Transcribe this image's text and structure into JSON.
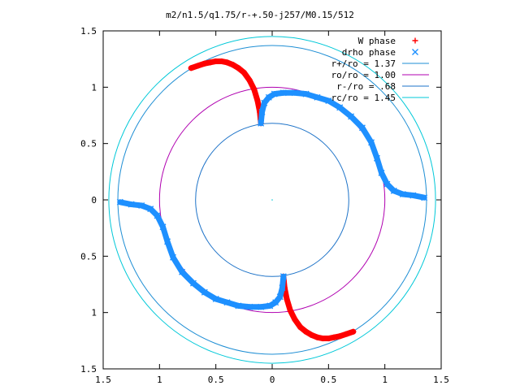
{
  "chart_data": {
    "type": "scatter",
    "title": "m2/n1.5/q1.75/r-+.50-j257/M0.15/512",
    "xlim": [
      -1.5,
      1.5
    ],
    "ylim": [
      -1.5,
      1.5
    ],
    "x_ticks": [
      -1.5,
      -1,
      -0.5,
      0,
      0.5,
      1,
      1.5
    ],
    "y_ticks": [
      -1.5,
      -1,
      -0.5,
      0,
      0.5,
      1,
      1.5
    ],
    "x_tick_labels": [
      "1.5",
      "1",
      "0.5",
      "0",
      "0.5",
      "1",
      "1.5"
    ],
    "y_tick_labels": [
      "1.5",
      "1",
      "0.5",
      "0",
      "0.5",
      "1",
      "1.5"
    ],
    "grid": false,
    "legend_position": "top-right",
    "series": [
      {
        "name": "W phase",
        "marker": "+",
        "color": "#ff0000",
        "points": [
          [
            -0.72,
            1.17
          ],
          [
            -0.66,
            1.19
          ],
          [
            -0.6,
            1.21
          ],
          [
            -0.55,
            1.22
          ],
          [
            -0.5,
            1.23
          ],
          [
            -0.45,
            1.23
          ],
          [
            -0.4,
            1.22
          ],
          [
            -0.35,
            1.2
          ],
          [
            -0.3,
            1.17
          ],
          [
            -0.25,
            1.13
          ],
          [
            -0.2,
            1.06
          ],
          [
            -0.16,
            0.98
          ],
          [
            -0.13,
            0.88
          ],
          [
            -0.11,
            0.78
          ],
          [
            -0.1,
            0.68
          ],
          [
            0.1,
            -0.68
          ],
          [
            0.11,
            -0.78
          ],
          [
            0.13,
            -0.88
          ],
          [
            0.16,
            -0.98
          ],
          [
            0.2,
            -1.06
          ],
          [
            0.25,
            -1.13
          ],
          [
            0.3,
            -1.17
          ],
          [
            0.35,
            -1.2
          ],
          [
            0.4,
            -1.22
          ],
          [
            0.45,
            -1.23
          ],
          [
            0.5,
            -1.23
          ],
          [
            0.55,
            -1.22
          ],
          [
            0.6,
            -1.21
          ],
          [
            0.66,
            -1.19
          ],
          [
            0.72,
            -1.17
          ]
        ]
      },
      {
        "name": "drho phase",
        "marker": "x",
        "color": "#1e90ff",
        "points": [
          [
            -0.1,
            0.68
          ],
          [
            -0.09,
            0.78
          ],
          [
            -0.07,
            0.86
          ],
          [
            -0.03,
            0.91
          ],
          [
            0.02,
            0.94
          ],
          [
            0.1,
            0.95
          ],
          [
            0.2,
            0.95
          ],
          [
            0.3,
            0.94
          ],
          [
            0.4,
            0.91
          ],
          [
            0.5,
            0.88
          ],
          [
            0.6,
            0.82
          ],
          [
            0.7,
            0.74
          ],
          [
            0.8,
            0.64
          ],
          [
            0.88,
            0.51
          ],
          [
            0.93,
            0.37
          ],
          [
            0.97,
            0.24
          ],
          [
            1.02,
            0.14
          ],
          [
            1.08,
            0.08
          ],
          [
            1.16,
            0.05
          ],
          [
            1.25,
            0.04
          ],
          [
            1.35,
            0.02
          ],
          [
            0.1,
            -0.68
          ],
          [
            0.09,
            -0.78
          ],
          [
            0.07,
            -0.86
          ],
          [
            0.03,
            -0.91
          ],
          [
            -0.02,
            -0.94
          ],
          [
            -0.1,
            -0.95
          ],
          [
            -0.2,
            -0.95
          ],
          [
            -0.3,
            -0.94
          ],
          [
            -0.4,
            -0.91
          ],
          [
            -0.5,
            -0.88
          ],
          [
            -0.6,
            -0.82
          ],
          [
            -0.7,
            -0.74
          ],
          [
            -0.8,
            -0.64
          ],
          [
            -0.88,
            -0.51
          ],
          [
            -0.93,
            -0.37
          ],
          [
            -0.97,
            -0.24
          ],
          [
            -1.02,
            -0.14
          ],
          [
            -1.08,
            -0.08
          ],
          [
            -1.16,
            -0.05
          ],
          [
            -1.25,
            -0.04
          ],
          [
            -1.35,
            -0.02
          ]
        ]
      },
      {
        "name": "r+/ro = 1.37",
        "type": "circle",
        "radius": 1.37,
        "color": "#1e8ed4"
      },
      {
        "name": "ro/ro = 1.00",
        "type": "circle",
        "radius": 1.0,
        "color": "#b000b0"
      },
      {
        "name": "r-/ro = .68",
        "type": "circle",
        "radius": 0.68,
        "color": "#1e73c8"
      },
      {
        "name": "rc/ro = 1.45",
        "type": "circle",
        "radius": 1.45,
        "color": "#00c8d8"
      }
    ]
  }
}
